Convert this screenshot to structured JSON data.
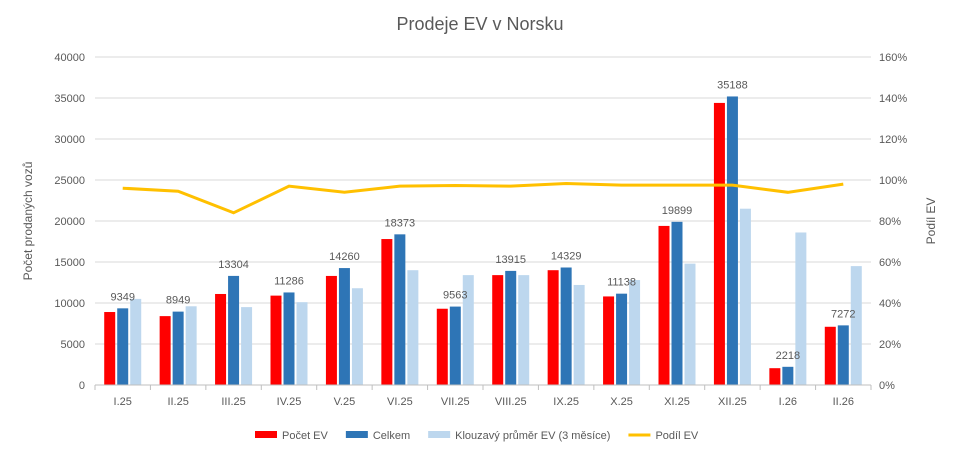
{
  "chart_data": {
    "type": "bar",
    "title": "Prodeje EV v Norsku",
    "ylabel": "Počet prodaných vozů",
    "y2label": "Podíl EV",
    "ylim": [
      0,
      40000
    ],
    "y2lim": [
      0,
      1.6
    ],
    "yticks": [
      "0",
      "5000",
      "10000",
      "15000",
      "20000",
      "25000",
      "30000",
      "35000",
      "40000"
    ],
    "y2ticks": [
      "0%",
      "20%",
      "40%",
      "60%",
      "80%",
      "100%",
      "120%",
      "140%",
      "160%"
    ],
    "grid": true,
    "legend_position": "bottom",
    "categories": [
      "I.25",
      "II.25",
      "III.25",
      "IV.25",
      "V.25",
      "VI.25",
      "VII.25",
      "VIII.25",
      "IX.25",
      "X.25",
      "XI.25",
      "XII.25",
      "I.26",
      "II.26"
    ],
    "series": [
      {
        "name": "Počet EV",
        "kind": "bar",
        "color": "#ff0000",
        "values": [
          8900,
          8400,
          11100,
          10900,
          13300,
          17800,
          9300,
          13400,
          14000,
          10800,
          19400,
          34400,
          2050,
          7100
        ]
      },
      {
        "name": "Celkem",
        "kind": "bar",
        "color": "#2e75b6",
        "values": [
          9349,
          8949,
          13304,
          11286,
          14260,
          18373,
          9563,
          13915,
          14329,
          11138,
          19899,
          35188,
          2218,
          7272
        ],
        "labels": [
          "9349",
          "8949",
          "13304",
          "11286",
          "14260",
          "18373",
          "9563",
          "13915",
          "14329",
          "11138",
          "19899",
          "35188",
          "2218",
          "7272"
        ]
      },
      {
        "name": "Klouzavý průměr EV (3 měsíce)",
        "kind": "bar",
        "color": "#bdd7ee",
        "values": [
          10500,
          9600,
          9500,
          10100,
          11800,
          14000,
          13400,
          13400,
          12200,
          12800,
          14800,
          21500,
          18600,
          14500
        ]
      },
      {
        "name": "Podíl EV",
        "kind": "line",
        "axis": "right",
        "color": "#ffc000",
        "values": [
          0.96,
          0.945,
          0.84,
          0.97,
          0.94,
          0.97,
          0.973,
          0.97,
          0.983,
          0.975,
          0.975,
          0.975,
          0.94,
          0.98
        ]
      }
    ]
  }
}
